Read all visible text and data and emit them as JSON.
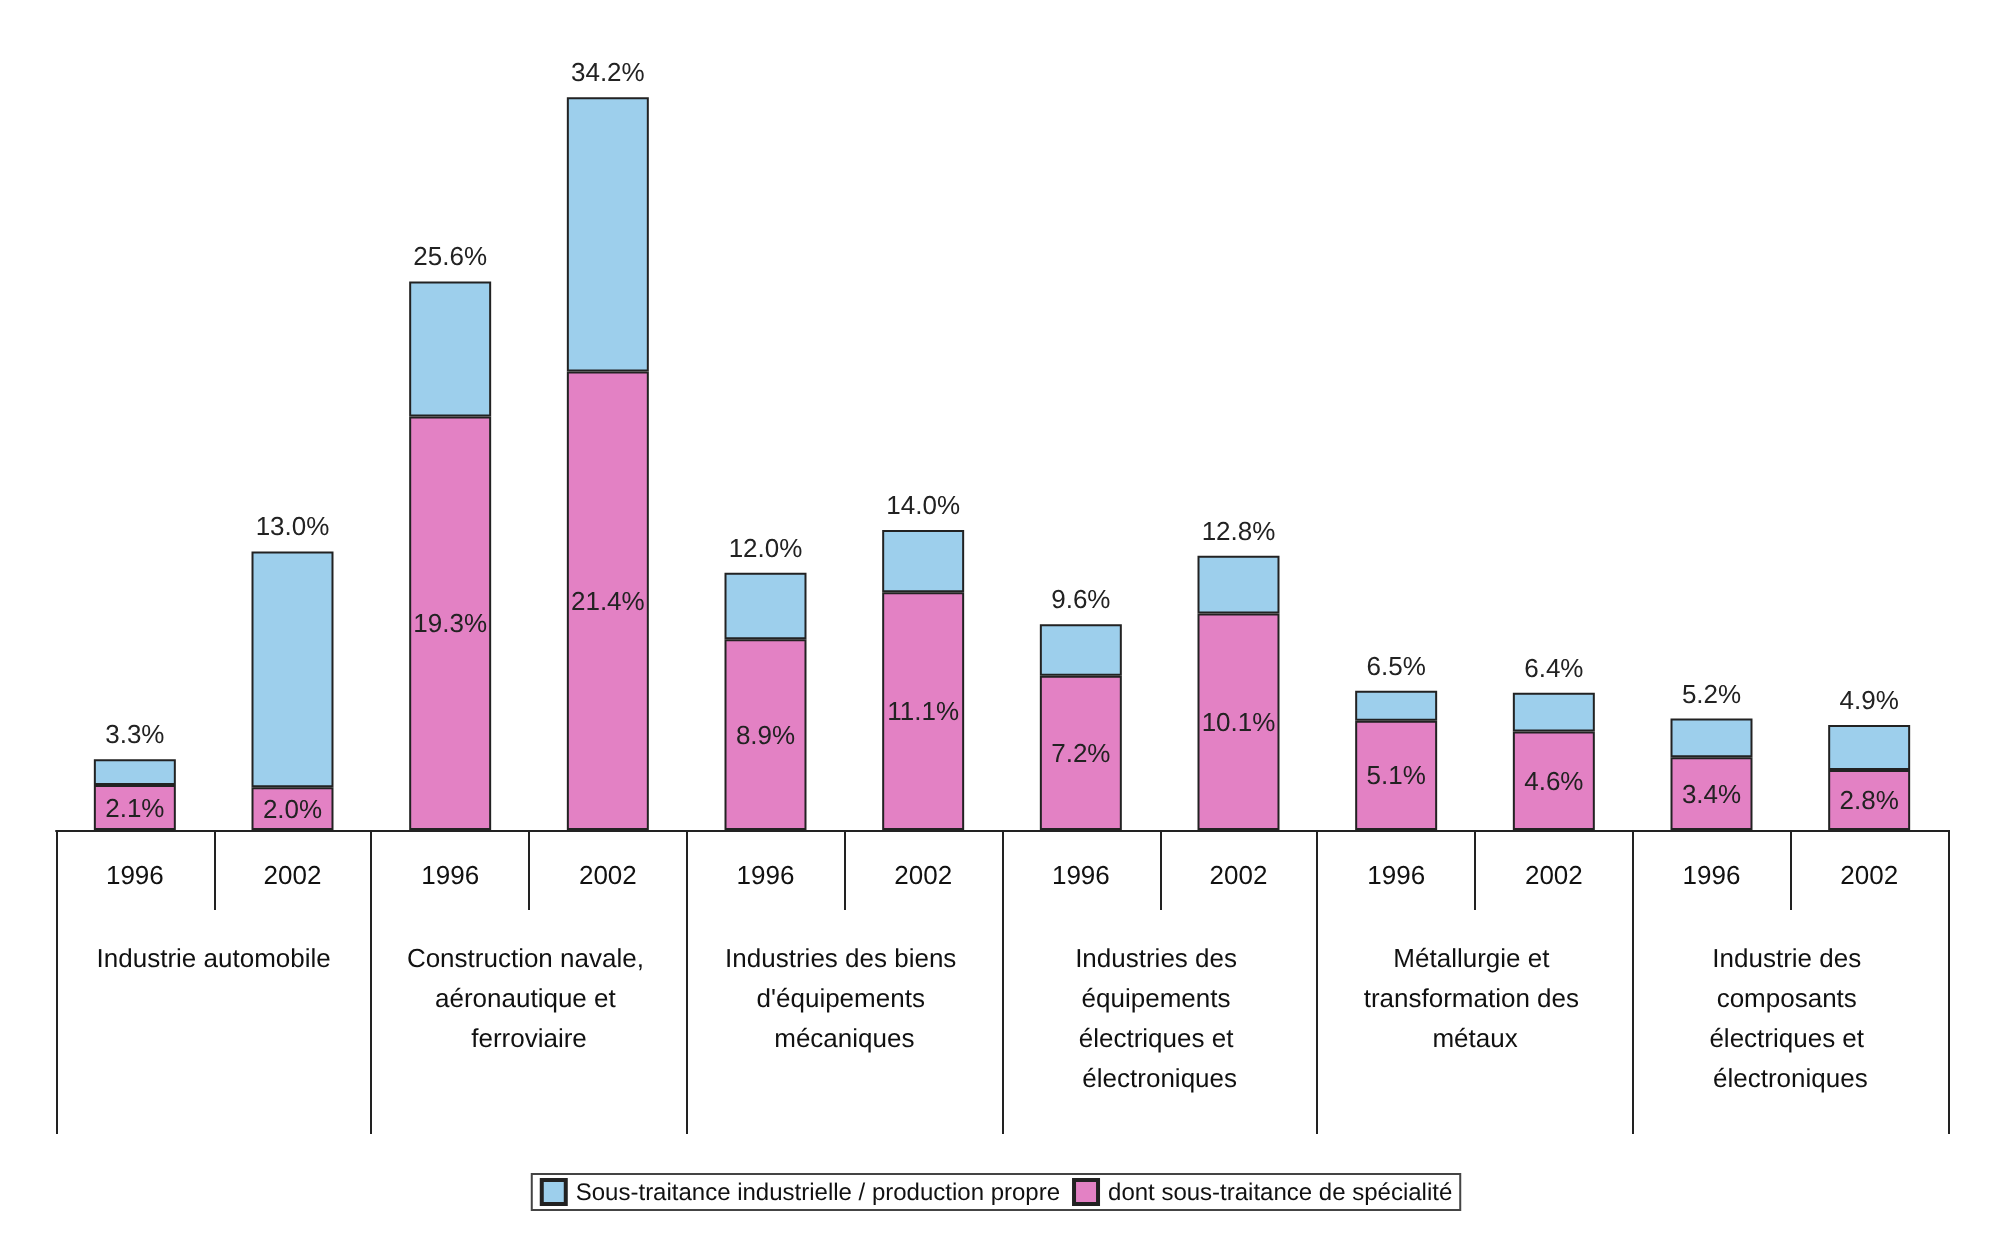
{
  "chart_data": {
    "type": "bar",
    "stacked": true,
    "categories": [
      "1996",
      "2002",
      "1996",
      "2002",
      "1996",
      "2002",
      "1996",
      "2002",
      "1996",
      "2002",
      "1996",
      "2002"
    ],
    "annotations": [
      "Industrie automobile",
      "Construction navale, aéronautique et ferroviaire",
      "Industries des biens d'équipements mécaniques",
      "Industries des équipements électriques et électroniques",
      "Métallurgie et transformation des métaux",
      "Industrie des composants électriques et électroniques"
    ],
    "series": [
      {
        "name": "dont sous-traitance de spécialité",
        "color": "#e381c4",
        "values": [
          2.1,
          2.0,
          19.3,
          21.4,
          8.9,
          11.1,
          7.2,
          10.1,
          5.1,
          4.6,
          3.4,
          2.8
        ],
        "value_labels": [
          "2.1%",
          "2.0%",
          "19.3%",
          "21.4%",
          "8.9%",
          "11.1%",
          "7.2%",
          "10.1%",
          "5.1%",
          "4.6%",
          "3.4%",
          "2.8%"
        ]
      },
      {
        "name": "Sous-traitance industrielle / production propre",
        "color": "#9dcfec",
        "values": [
          1.2,
          11.0,
          6.3,
          12.8,
          3.1,
          2.9,
          2.4,
          2.7,
          1.4,
          1.8,
          1.8,
          2.1
        ]
      }
    ],
    "totals": [
      "3.3%",
      "13.0%",
      "25.6%",
      "34.2%",
      "12.0%",
      "14.0%",
      "9.6%",
      "12.8%",
      "6.5%",
      "6.4%",
      "5.2%",
      "4.9%"
    ],
    "legend": "bottom"
  }
}
